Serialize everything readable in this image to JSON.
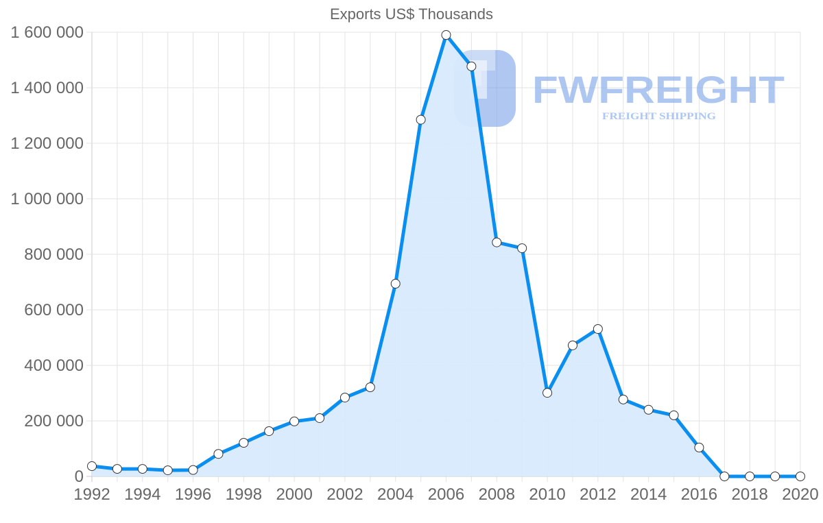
{
  "chart_data": {
    "type": "area",
    "title": "Exports US$ Thousands",
    "xlabel": "",
    "ylabel": "",
    "x": [
      1992,
      1993,
      1994,
      1995,
      1996,
      1997,
      1998,
      1999,
      2000,
      2001,
      2002,
      2003,
      2004,
      2005,
      2006,
      2007,
      2008,
      2009,
      2010,
      2011,
      2012,
      2013,
      2014,
      2015,
      2016,
      2017,
      2018,
      2019,
      2020
    ],
    "series": [
      {
        "name": "Exports US$ Thousands",
        "values": [
          37000,
          27000,
          27000,
          22000,
          23000,
          81000,
          121000,
          163000,
          198000,
          210000,
          284000,
          321000,
          694000,
          1285000,
          1590000,
          1477000,
          843000,
          822000,
          301000,
          472000,
          531000,
          277000,
          240000,
          220000,
          104000,
          0,
          0,
          0,
          0
        ],
        "color": "#0a8ef0",
        "fill": "#d7eafc"
      }
    ],
    "ylim": [
      0,
      1600000
    ],
    "xlim": [
      1992,
      2020
    ],
    "yticks": [
      "0",
      "200 000",
      "400 000",
      "600 000",
      "800 000",
      "1 000 000",
      "1 200 000",
      "1 400 000",
      "1 600 000"
    ],
    "ytick_values": [
      0,
      200000,
      400000,
      600000,
      800000,
      1000000,
      1200000,
      1400000,
      1600000
    ],
    "xticks": [
      "1992",
      "1994",
      "1996",
      "1998",
      "2000",
      "2002",
      "2004",
      "2006",
      "2008",
      "2010",
      "2012",
      "2014",
      "2016",
      "2018",
      "2020"
    ],
    "grid": true,
    "legend": "none",
    "point_style": "white circles with dark outline"
  },
  "watermark": {
    "brand": "FWFREIGHT",
    "tagline": "FREIGHT SHIPPING",
    "color": "#8db0ec"
  }
}
